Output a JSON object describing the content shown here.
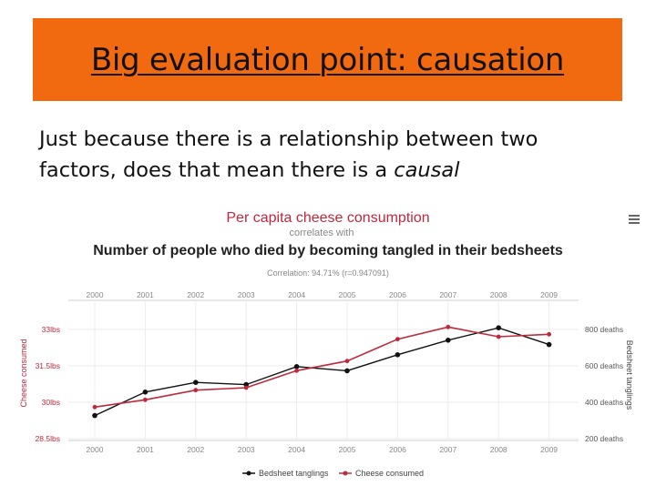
{
  "slide": {
    "title": "Big evaluation point: causation",
    "body_line1": "Just because there is a relationship between two",
    "body_line2_prefix": "factors, does that mean there is a ",
    "body_line2_emph": "causal"
  },
  "chart_data": {
    "type": "line",
    "title": "Per capita cheese consumption",
    "subtitle_connector": "correlates with",
    "subtitle": "Number of people who died by becoming tangled in their bedsheets",
    "correlation": "Correlation: 94.71% (r=0.947091)",
    "categories": [
      "2000",
      "2001",
      "2002",
      "2003",
      "2004",
      "2005",
      "2006",
      "2007",
      "2008",
      "2009"
    ],
    "y_left": {
      "label": "Cheese consumed",
      "ticks": [
        "33lbs",
        "31.5lbs",
        "30lbs",
        "28.5lbs"
      ],
      "tick_values": [
        33,
        31.5,
        30,
        28.5
      ],
      "range": [
        28.5,
        33
      ]
    },
    "y_right": {
      "label": "Bedsheet tanglings",
      "ticks": [
        "800 deaths",
        "600 deaths",
        "400 deaths",
        "200 deaths"
      ],
      "tick_values": [
        800,
        600,
        400,
        200
      ],
      "range": [
        200,
        800
      ]
    },
    "series": [
      {
        "name": "Bedsheet tanglings",
        "axis": "right",
        "color": "#111111",
        "values": [
          327,
          456,
          509,
          497,
          596,
          573,
          661,
          741,
          809,
          717
        ]
      },
      {
        "name": "Cheese consumed",
        "axis": "left",
        "color": "#c0283c",
        "values": [
          29.8,
          30.1,
          30.5,
          30.6,
          31.3,
          31.7,
          32.6,
          33.1,
          32.7,
          32.8
        ]
      }
    ],
    "legend_position": "bottom",
    "grid": true
  },
  "icons": {
    "menu": "menu-icon"
  }
}
